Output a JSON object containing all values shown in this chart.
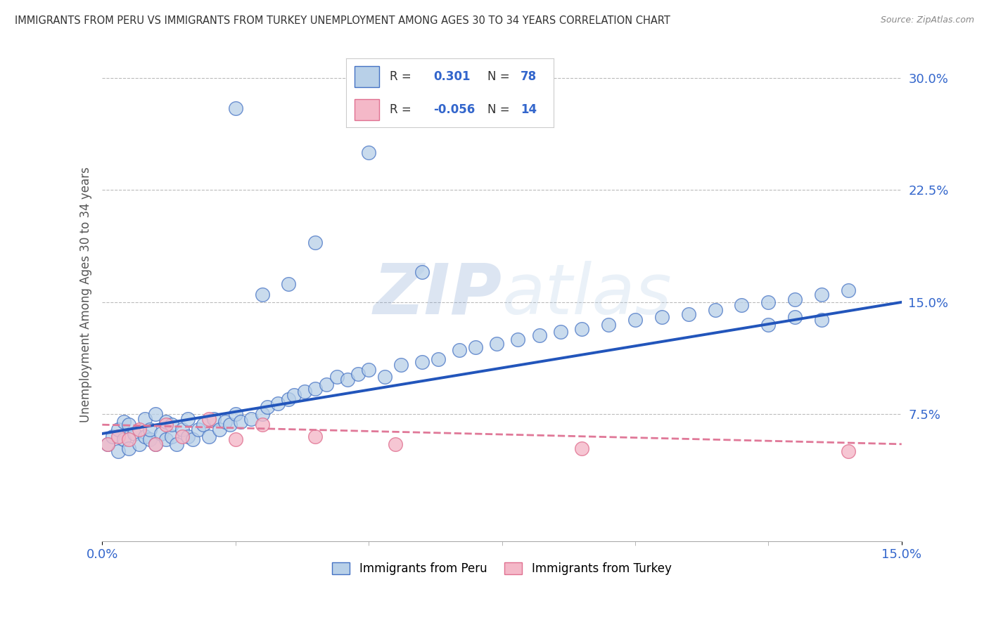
{
  "title": "IMMIGRANTS FROM PERU VS IMMIGRANTS FROM TURKEY UNEMPLOYMENT AMONG AGES 30 TO 34 YEARS CORRELATION CHART",
  "source": "Source: ZipAtlas.com",
  "ylabel": "Unemployment Among Ages 30 to 34 years",
  "legend_label1": "Immigrants from Peru",
  "legend_label2": "Immigrants from Turkey",
  "r1": "0.301",
  "n1": "78",
  "r2": "-0.056",
  "n2": "14",
  "color_peru_face": "#b8d0e8",
  "color_peru_edge": "#4472c4",
  "color_turkey_face": "#f4b8c8",
  "color_turkey_edge": "#e07090",
  "color_peru_line": "#2255bb",
  "color_turkey_line": "#e07898",
  "color_r_value": "#3366cc",
  "background_color": "#ffffff",
  "grid_color": "#bbbbbb",
  "watermark_color": "#d0dff0",
  "xlim": [
    0.0,
    0.15
  ],
  "ylim": [
    -0.01,
    0.32
  ],
  "yticks": [
    0.0,
    0.075,
    0.15,
    0.225,
    0.3
  ],
  "ytick_labels": [
    "",
    "7.5%",
    "15.0%",
    "22.5%",
    "30.0%"
  ],
  "xtick_left": "0.0%",
  "xtick_right": "15.0%",
  "peru_x": [
    0.001,
    0.002,
    0.003,
    0.003,
    0.004,
    0.004,
    0.005,
    0.005,
    0.006,
    0.007,
    0.008,
    0.008,
    0.009,
    0.009,
    0.01,
    0.01,
    0.011,
    0.012,
    0.012,
    0.013,
    0.013,
    0.014,
    0.015,
    0.016,
    0.016,
    0.017,
    0.018,
    0.019,
    0.02,
    0.021,
    0.022,
    0.023,
    0.024,
    0.025,
    0.026,
    0.028,
    0.03,
    0.031,
    0.033,
    0.035,
    0.036,
    0.038,
    0.04,
    0.042,
    0.044,
    0.046,
    0.048,
    0.05,
    0.053,
    0.056,
    0.06,
    0.063,
    0.067,
    0.07,
    0.074,
    0.078,
    0.082,
    0.086,
    0.09,
    0.095,
    0.1,
    0.105,
    0.11,
    0.115,
    0.12,
    0.125,
    0.13,
    0.135,
    0.14,
    0.03,
    0.04,
    0.05,
    0.06,
    0.025,
    0.035,
    0.125,
    0.13,
    0.135
  ],
  "peru_y": [
    0.055,
    0.06,
    0.05,
    0.065,
    0.058,
    0.07,
    0.052,
    0.068,
    0.062,
    0.055,
    0.06,
    0.072,
    0.058,
    0.065,
    0.055,
    0.075,
    0.062,
    0.058,
    0.07,
    0.06,
    0.068,
    0.055,
    0.065,
    0.06,
    0.072,
    0.058,
    0.065,
    0.068,
    0.06,
    0.072,
    0.065,
    0.07,
    0.068,
    0.075,
    0.07,
    0.072,
    0.075,
    0.08,
    0.082,
    0.085,
    0.088,
    0.09,
    0.092,
    0.095,
    0.1,
    0.098,
    0.102,
    0.105,
    0.1,
    0.108,
    0.11,
    0.112,
    0.118,
    0.12,
    0.122,
    0.125,
    0.128,
    0.13,
    0.132,
    0.135,
    0.138,
    0.14,
    0.142,
    0.145,
    0.148,
    0.15,
    0.152,
    0.155,
    0.158,
    0.155,
    0.19,
    0.25,
    0.17,
    0.28,
    0.162,
    0.135,
    0.14,
    0.138
  ],
  "turkey_x": [
    0.001,
    0.003,
    0.005,
    0.007,
    0.01,
    0.012,
    0.015,
    0.02,
    0.025,
    0.03,
    0.04,
    0.055,
    0.09,
    0.14
  ],
  "turkey_y": [
    0.055,
    0.06,
    0.058,
    0.065,
    0.055,
    0.068,
    0.06,
    0.072,
    0.058,
    0.068,
    0.06,
    0.055,
    0.052,
    0.05
  ],
  "peru_line_x": [
    0.0,
    0.15
  ],
  "peru_line_y": [
    0.062,
    0.15
  ],
  "turkey_line_x": [
    0.0,
    0.15
  ],
  "turkey_line_y": [
    0.068,
    0.055
  ]
}
